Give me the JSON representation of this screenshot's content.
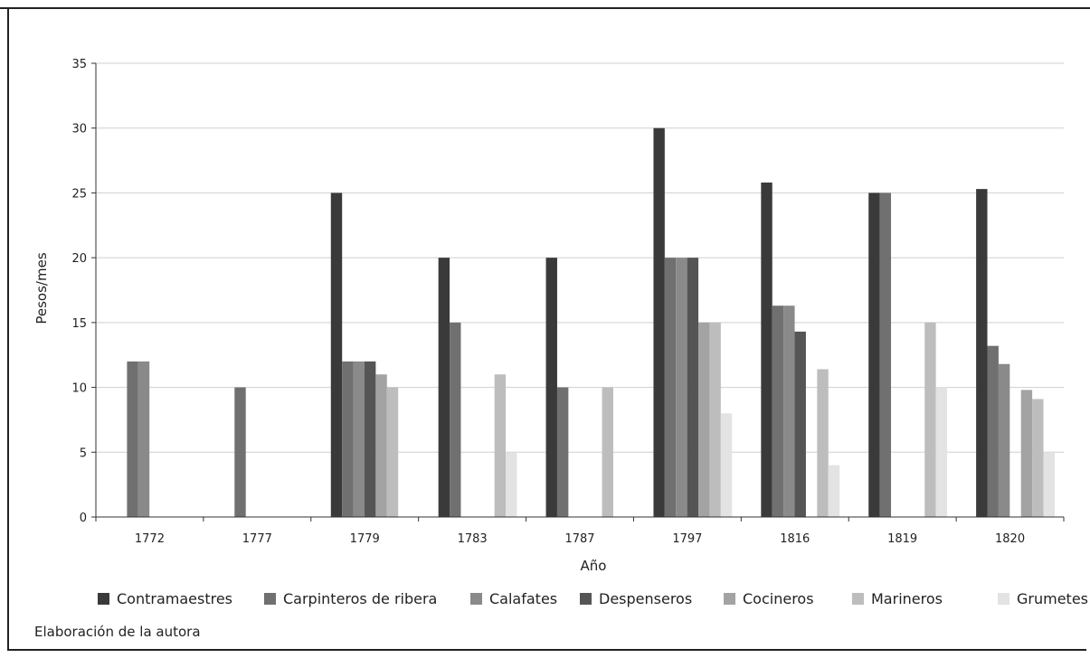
{
  "chart_data": {
    "type": "bar",
    "xlabel": "Año",
    "ylabel": "Pesos/mes",
    "ylim": [
      0,
      35
    ],
    "yticks": [
      0,
      5,
      10,
      15,
      20,
      25,
      30,
      35
    ],
    "grid": true,
    "legend_position": "bottom",
    "categories": [
      "1772",
      "1777",
      "1779",
      "1783",
      "1787",
      "1797",
      "1816",
      "1819",
      "1820"
    ],
    "series": [
      {
        "name": "Contramaestres",
        "color": "#3a3a3a",
        "values": [
          0,
          0,
          25,
          20,
          20,
          30,
          25.8,
          25,
          25.3
        ]
      },
      {
        "name": "Carpinteros de ribera",
        "color": "#707070",
        "values": [
          12,
          10,
          12,
          15,
          10,
          20,
          16.3,
          25,
          13.2
        ]
      },
      {
        "name": "Calafates",
        "color": "#8a8a8a",
        "values": [
          12,
          0,
          12,
          0,
          0,
          20,
          16.3,
          0,
          11.8
        ]
      },
      {
        "name": "Despenseros",
        "color": "#555555",
        "values": [
          0,
          0,
          12,
          0,
          0,
          20,
          14.3,
          0,
          0
        ]
      },
      {
        "name": "Cocineros",
        "color": "#a3a3a3",
        "values": [
          0,
          0,
          11,
          0,
          0,
          15,
          0,
          0,
          9.8
        ]
      },
      {
        "name": "Marineros",
        "color": "#bdbdbd",
        "values": [
          0,
          0,
          10,
          11,
          10,
          15,
          11.4,
          15,
          9.1
        ]
      },
      {
        "name": "Grumetes",
        "color": "#e3e3e3",
        "values": [
          0,
          0,
          0,
          5,
          0,
          8,
          4,
          10,
          5
        ]
      }
    ]
  },
  "source_note": "Elaboración de la autora"
}
